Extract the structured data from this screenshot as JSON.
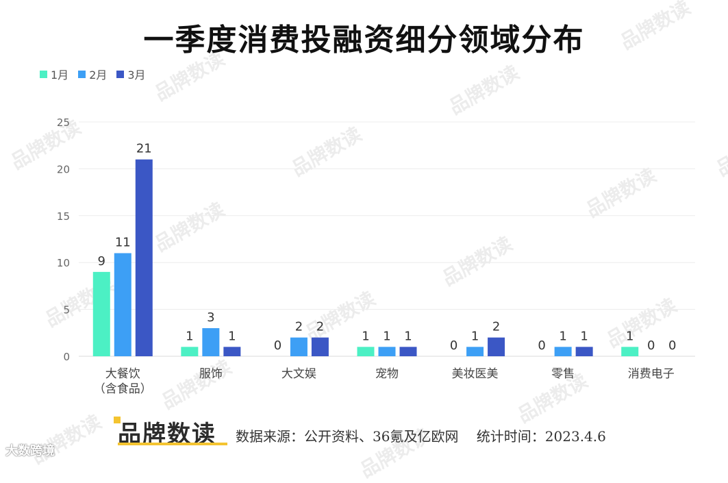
{
  "title": "一季度消费投融资细分领域分布",
  "chart_data": {
    "type": "bar",
    "title": "一季度消费投融资细分领域分布",
    "categories": [
      "大餐饮\n（含食品）",
      "服饰",
      "大文娱",
      "宠物",
      "美妆医美",
      "零售",
      "消费电子"
    ],
    "series": [
      {
        "name": "1月",
        "color": "#4cf0c4",
        "values": [
          9,
          1,
          0,
          1,
          0,
          0,
          1
        ]
      },
      {
        "name": "2月",
        "color": "#3d9ff5",
        "values": [
          11,
          3,
          2,
          1,
          1,
          1,
          0
        ]
      },
      {
        "name": "3月",
        "color": "#3b57c5",
        "values": [
          21,
          1,
          2,
          1,
          2,
          1,
          0
        ]
      }
    ],
    "yticks": [
      0,
      5,
      10,
      15,
      20,
      25
    ],
    "ylim": [
      0,
      25
    ],
    "xlabel": "",
    "ylabel": "",
    "grid": true,
    "legend_position": "top-left"
  },
  "footer": {
    "logo": "品牌数读",
    "source": "数据来源：公开资料、36氪及亿欧网　 统计时间：2023.4.6"
  },
  "watermark": "品牌数读",
  "corner_mark": "大数跨境"
}
